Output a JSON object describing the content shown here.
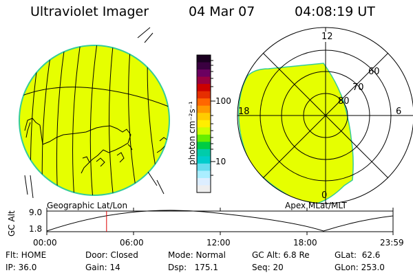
{
  "header": {
    "title": "Ultraviolet Imager",
    "date": "04 Mar 07",
    "time": "04:08:19 UT"
  },
  "left_panel": {
    "caption": "Geographic Lat/Lon"
  },
  "right_panel": {
    "caption": "Apex MLat/MLT",
    "mlt_labels": {
      "top": "12",
      "left": "18",
      "right": "6",
      "bottom": "0"
    },
    "lat_labels": [
      "60",
      "70",
      "80"
    ]
  },
  "colorbar": {
    "unit_label": "photon cm⁻²s⁻¹",
    "tick_labels": [
      "100",
      "10"
    ],
    "colors": [
      "#1a0020",
      "#3a0040",
      "#6b0060",
      "#990040",
      "#cc0000",
      "#e62e00",
      "#ff6600",
      "#ff9900",
      "#ffcc00",
      "#ffee00",
      "#ccff00",
      "#66ee00",
      "#00cc44",
      "#00ccaa",
      "#00cccc",
      "#66ddee",
      "#aaeeff",
      "#ddeeff",
      "#eeeeee"
    ]
  },
  "altitude_plot": {
    "ylabel": "GC Alt",
    "ymax_label": "9.0",
    "ymin_label": "1.8",
    "ylim": [
      1.8,
      9.0
    ],
    "xtick_labels": [
      "00:00",
      "06:00",
      "12:00",
      "18:00",
      "23:59"
    ],
    "current_time_hours": 4.14,
    "marker_color": "#dd0000"
  },
  "footer": {
    "row1": {
      "flt": "Flt: HOME",
      "door": "Door: Closed",
      "mode": "Mode: Normal",
      "gcalt": "GC Alt: 6.8 Re",
      "glat": "GLat:  62.6"
    },
    "row2": {
      "ip": "IP: 36.0",
      "gain": "Gain: 14",
      "dsp": "Dsp:   175.1",
      "seq": "Seq: 20",
      "glon": "GLon: 253.0"
    }
  },
  "colors": {
    "auroral_fill": "#e6ff00",
    "edge": "#33cc99"
  }
}
